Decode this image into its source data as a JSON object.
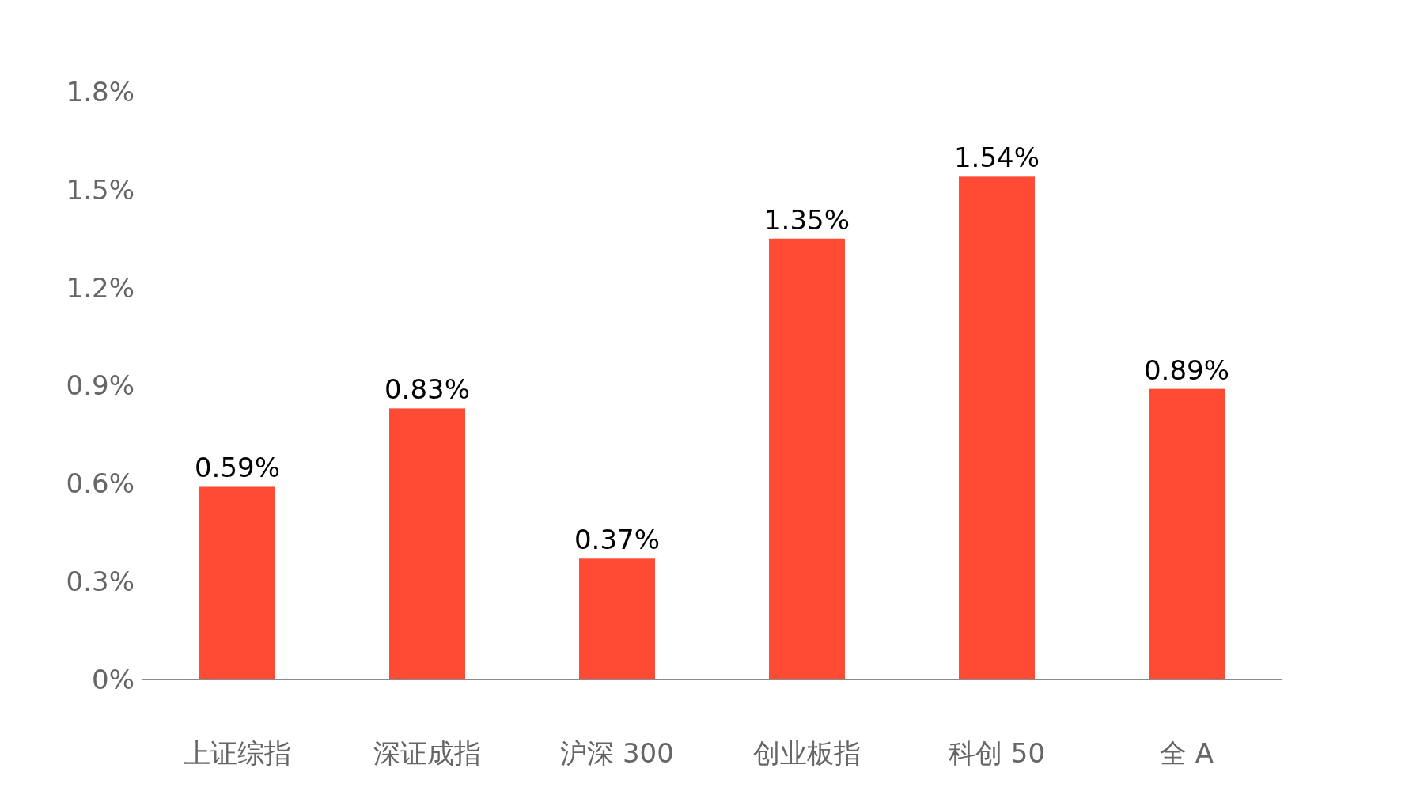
{
  "chart_data": {
    "type": "bar",
    "categories": [
      "上证综指",
      "深证成指",
      "沪深 300",
      "创业板指",
      "科创 50",
      "全 A"
    ],
    "values": [
      0.59,
      0.83,
      0.37,
      1.35,
      1.54,
      0.89
    ],
    "value_labels": [
      "0.59%",
      "0.83%",
      "0.37%",
      "1.35%",
      "1.54%",
      "0.89%"
    ],
    "color": "#ff4b33",
    "ylim": [
      0,
      1.8
    ],
    "yticks": [
      {
        "value": 0,
        "label": "0%"
      },
      {
        "value": 0.3,
        "label": "0.3%"
      },
      {
        "value": 0.6,
        "label": "0.6%"
      },
      {
        "value": 0.9,
        "label": "0.9%"
      },
      {
        "value": 1.2,
        "label": "1.2%"
      },
      {
        "value": 1.5,
        "label": "1.5%"
      },
      {
        "value": 1.8,
        "label": "1.8%"
      }
    ],
    "grid": false
  }
}
